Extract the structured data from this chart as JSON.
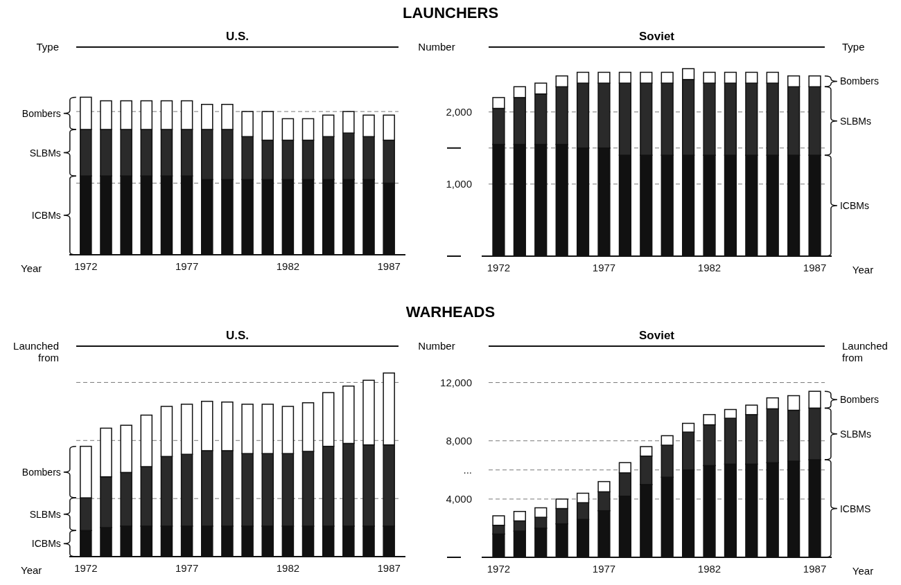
{
  "chart_data": [
    {
      "type": "bar",
      "title": "LAUNCHERS",
      "subtitle": "U.S.",
      "legend_title": "Type",
      "xlabel": "Year",
      "stacked": true,
      "legend": "left",
      "tick_labels": "x",
      "grid": "y",
      "categories": [
        "1972",
        null,
        null,
        null,
        null,
        "1977",
        null,
        null,
        null,
        null,
        "1982",
        null,
        null,
        null,
        null,
        "1987"
      ],
      "ylim": [
        0,
        2900
      ],
      "yticks": [
        1000,
        2000
      ],
      "series": [
        {
          "name": "ICBMs",
          "color": "#111111",
          "values": [
            1100,
            1100,
            1100,
            1100,
            1100,
            1100,
            1050,
            1050,
            1050,
            1050,
            1050,
            1050,
            1050,
            1050,
            1050,
            1000
          ]
        },
        {
          "name": "SLBMs",
          "color": "#2a2a2a",
          "values": [
            650,
            650,
            650,
            650,
            650,
            650,
            700,
            700,
            600,
            550,
            550,
            550,
            600,
            650,
            600,
            600
          ]
        },
        {
          "name": "Bombers",
          "color": "#ffffff",
          "values": [
            450,
            400,
            400,
            400,
            400,
            400,
            350,
            350,
            350,
            400,
            300,
            300,
            300,
            300,
            300,
            350
          ]
        }
      ]
    },
    {
      "type": "bar",
      "subtitle": "Soviet",
      "legend_title": "Type",
      "ylabel": "Number",
      "xlabel": "Year",
      "stacked": true,
      "legend": "right",
      "grid": "y",
      "categories": [
        "1972",
        null,
        null,
        null,
        null,
        "1977",
        null,
        null,
        null,
        null,
        "1982",
        null,
        null,
        null,
        null,
        "1987"
      ],
      "ylim": [
        0,
        2900
      ],
      "yticks": [
        {
          "value": 0,
          "label": null
        },
        {
          "value": 1000,
          "label": "1,000"
        },
        {
          "value": 1500,
          "label": null
        },
        {
          "value": 2000,
          "label": "2,000"
        }
      ],
      "series": [
        {
          "name": "ICBMs",
          "color": "#111111",
          "values": [
            1550,
            1550,
            1550,
            1550,
            1500,
            1500,
            1400,
            1400,
            1400,
            1400,
            1400,
            1400,
            1400,
            1400,
            1400,
            1400
          ]
        },
        {
          "name": "SLBMs",
          "color": "#2a2a2a",
          "values": [
            500,
            650,
            700,
            800,
            900,
            900,
            1000,
            1000,
            1000,
            1050,
            1000,
            1000,
            1000,
            1000,
            950,
            950
          ]
        },
        {
          "name": "Bombers",
          "color": "#ffffff",
          "values": [
            150,
            150,
            150,
            150,
            150,
            150,
            150,
            150,
            150,
            150,
            150,
            150,
            150,
            150,
            150,
            150
          ]
        }
      ]
    },
    {
      "type": "bar",
      "title": "WARHEADS",
      "subtitle": "U.S.",
      "legend_title": "Launched from",
      "xlabel": "Year",
      "stacked": true,
      "legend": "left",
      "tick_labels": "x",
      "grid": "y",
      "categories": [
        "1972",
        null,
        null,
        null,
        null,
        "1977",
        null,
        null,
        null,
        null,
        "1982",
        null,
        null,
        null,
        null,
        "1987"
      ],
      "ylim": [
        0,
        14500
      ],
      "yticks": [
        4000,
        8000,
        12000
      ],
      "series": [
        {
          "name": "ICBMs",
          "color": "#111111",
          "values": [
            1800,
            2000,
            2100,
            2100,
            2100,
            2100,
            2100,
            2100,
            2100,
            2100,
            2100,
            2100,
            2100,
            2100,
            2100,
            2100
          ]
        },
        {
          "name": "SLBMs",
          "color": "#2a2a2a",
          "values": [
            2250,
            3500,
            3700,
            4100,
            4800,
            4950,
            5200,
            5200,
            5000,
            5000,
            5000,
            5150,
            5500,
            5700,
            5600,
            5600
          ]
        },
        {
          "name": "Bombers",
          "color": "#ffffff",
          "values": [
            3550,
            3350,
            3250,
            3550,
            3450,
            3450,
            3400,
            3350,
            3400,
            3400,
            3250,
            3350,
            3700,
            3950,
            4450,
            4950
          ]
        }
      ]
    },
    {
      "type": "bar",
      "subtitle": "Soviet",
      "legend_title": "Launched from",
      "ylabel": "Number",
      "xlabel": "Year",
      "stacked": true,
      "legend": "right",
      "grid": "y",
      "categories": [
        "1972",
        null,
        null,
        null,
        null,
        "1977",
        null,
        null,
        null,
        null,
        "1982",
        null,
        null,
        null,
        null,
        "1987"
      ],
      "ylim": [
        0,
        14500
      ],
      "yticks": [
        {
          "value": 0,
          "label": null
        },
        {
          "value": 4000,
          "label": "4,000"
        },
        {
          "value": 6000,
          "label": "..."
        },
        {
          "value": 8000,
          "label": "8,000"
        },
        {
          "value": 12000,
          "label": "12,000"
        }
      ],
      "series": [
        {
          "name": "ICBMS",
          "color": "#111111",
          "values": [
            1600,
            1800,
            2000,
            2300,
            2600,
            3200,
            4200,
            5000,
            5500,
            6000,
            6300,
            6400,
            6400,
            6500,
            6600,
            6700
          ]
        },
        {
          "name": "SLBMs",
          "color": "#2a2a2a",
          "values": [
            600,
            700,
            750,
            1050,
            1150,
            1300,
            1600,
            1950,
            2200,
            2600,
            2800,
            3150,
            3400,
            3700,
            3500,
            3550
          ]
        },
        {
          "name": "Bombers",
          "color": "#ffffff",
          "values": [
            650,
            650,
            650,
            650,
            650,
            700,
            700,
            650,
            650,
            600,
            700,
            600,
            650,
            750,
            1000,
            1150
          ]
        }
      ]
    }
  ]
}
